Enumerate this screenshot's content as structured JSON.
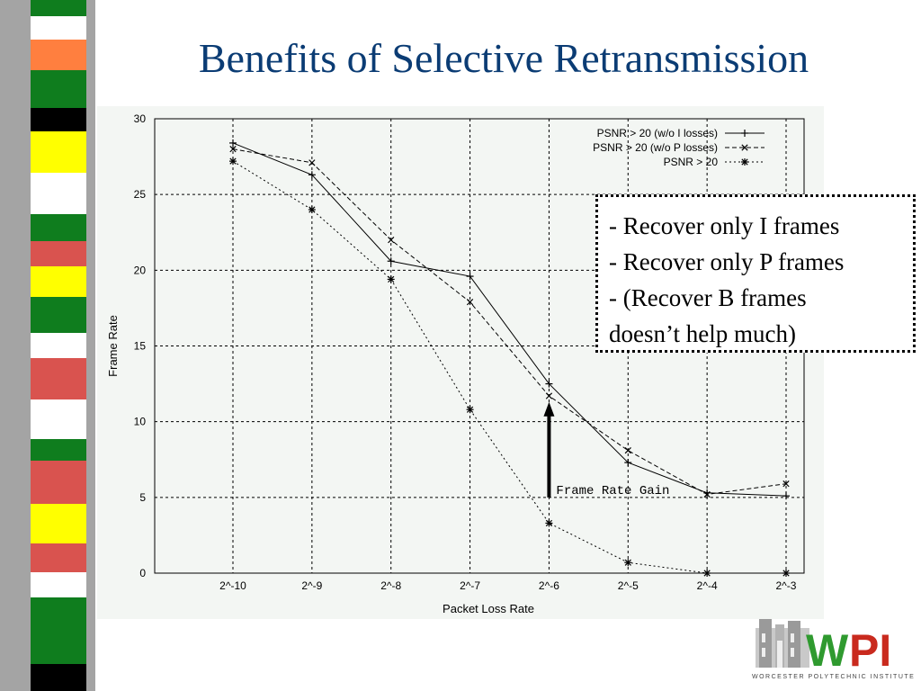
{
  "slide": {
    "title": "Benefits of Selective Retransmission",
    "callout": [
      "- Recover only I frames",
      "- Recover only P frames",
      "- (Recover B frames",
      "doesn’t help much)"
    ]
  },
  "logo": {
    "wordmark": "WPI",
    "caption": "WORCESTER POLYTECHNIC INSTITUTE"
  },
  "chart_data": {
    "type": "line",
    "xlabel": "Packet Loss Rate",
    "ylabel": "Frame Rate",
    "categories": [
      "2^-10",
      "2^-9",
      "2^-8",
      "2^-7",
      "2^-6",
      "2^-5",
      "2^-4",
      "2^-3"
    ],
    "ylim": [
      0,
      30
    ],
    "yticks": [
      0,
      5,
      10,
      15,
      20,
      25,
      30
    ],
    "grid": true,
    "legend_position": "top-right",
    "series": [
      {
        "name": "PSNR > 20 (w/o I losses)",
        "marker": "+",
        "dash": "solid",
        "values": [
          28.4,
          26.3,
          20.6,
          19.6,
          12.5,
          7.3,
          5.3,
          5.1
        ]
      },
      {
        "name": "PSNR > 20 (w/o P losses)",
        "marker": "x",
        "dash": "dashed",
        "values": [
          28.0,
          27.1,
          22.0,
          17.9,
          11.7,
          8.1,
          5.2,
          5.9
        ]
      },
      {
        "name": "PSNR > 20",
        "marker": "*",
        "dash": "dotted",
        "values": [
          27.2,
          24.0,
          19.4,
          10.8,
          3.3,
          0.7,
          0.0,
          0.0
        ]
      }
    ],
    "annotation": {
      "text": "Frame Rate Gain",
      "x": "2^-6",
      "y_from": 5,
      "y_to": 11.3
    }
  },
  "colors": {
    "title": "#0b3c74",
    "strip_gray": "#a4a4a4",
    "strip_green": "#0f7d1e",
    "strip_red": "#d9534f",
    "strip_yellow": "#ffff00",
    "strip_orange": "#ff7f3f",
    "logo_green": "#2f9a2f",
    "logo_red": "#c92a1e"
  }
}
